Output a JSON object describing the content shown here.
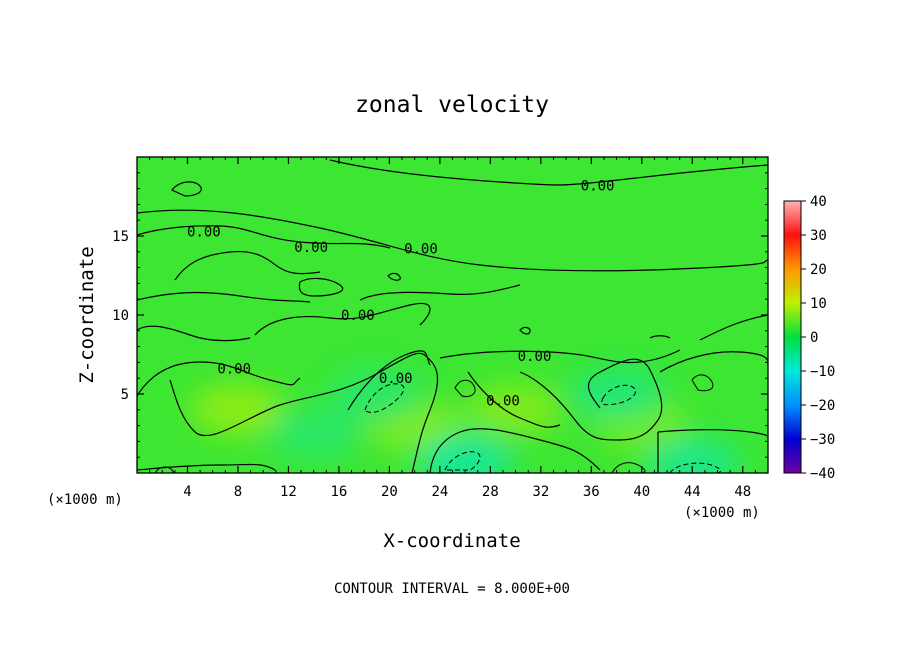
{
  "chart_data": {
    "type": "heatmap",
    "title": "zonal velocity",
    "xlabel": "X-coordinate",
    "ylabel": "Z-coordinate",
    "x_unit_note": "(×1000 m)",
    "x_unit_note_right": "(×1000 m)",
    "xlim": [
      0,
      50
    ],
    "ylim": [
      0,
      20
    ],
    "x_ticks": [
      4,
      8,
      12,
      16,
      20,
      24,
      28,
      32,
      36,
      40,
      44,
      48
    ],
    "y_ticks": [
      5,
      10,
      15
    ],
    "x_tick_labels": [
      "4",
      "8",
      "12",
      "16",
      "20",
      "24",
      "28",
      "32",
      "36",
      "40",
      "44",
      "48"
    ],
    "y_tick_labels": [
      "5",
      "10",
      "15"
    ],
    "colorbar": {
      "min": -40,
      "max": 40,
      "ticks": [
        40,
        30,
        20,
        10,
        0,
        -10,
        -20,
        -30,
        -40
      ],
      "tick_labels": [
        "40",
        "30",
        "20",
        "10",
        "0",
        "−10",
        "−20",
        "−30",
        "−40"
      ]
    },
    "contour_interval_text": "CONTOUR INTERVAL = 8.000E+00",
    "contour_labels": [
      {
        "text": "0.00",
        "x": 36.5,
        "z": 18.2
      },
      {
        "text": "0.00",
        "x": 5.3,
        "z": 15.3
      },
      {
        "text": "0.00",
        "x": 13.8,
        "z": 14.3
      },
      {
        "text": "0.00",
        "x": 22.5,
        "z": 14.2
      },
      {
        "text": "0.00",
        "x": 17.5,
        "z": 10.0
      },
      {
        "text": "0.00",
        "x": 7.7,
        "z": 6.6
      },
      {
        "text": "0.00",
        "x": 20.5,
        "z": 6.0
      },
      {
        "text": "0.00",
        "x": 31.5,
        "z": 7.4
      },
      {
        "text": "0.00",
        "x": 29.0,
        "z": 4.6
      }
    ],
    "field_regions": [
      {
        "description": "background near zero",
        "value": 0
      },
      {
        "x": 8,
        "z": 4,
        "value": 6
      },
      {
        "x": 22,
        "z": 3,
        "value": 5
      },
      {
        "x": 30,
        "z": 4,
        "value": 5
      },
      {
        "x": 40,
        "z": 3,
        "value": 4
      },
      {
        "x": 26,
        "z": 0.8,
        "value": -6
      },
      {
        "x": 44,
        "z": 0.6,
        "value": -5
      },
      {
        "x": 14,
        "z": 2.5,
        "value": -3
      },
      {
        "x": 38,
        "z": 5,
        "value": -4
      },
      {
        "x": 19,
        "z": 5,
        "value": -3
      }
    ]
  }
}
